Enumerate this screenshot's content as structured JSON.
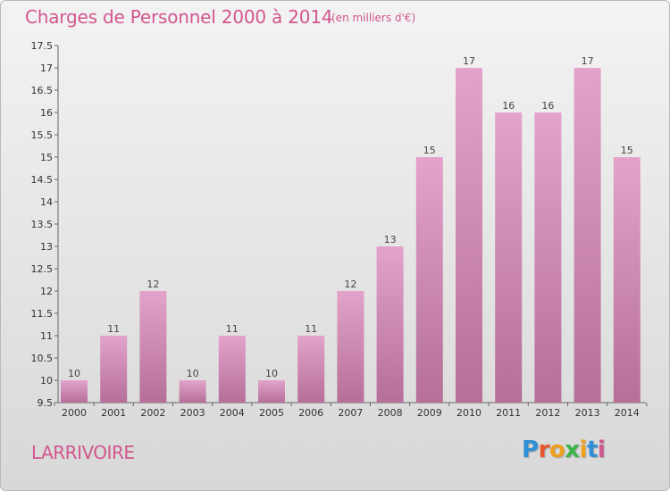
{
  "header": {
    "title": "Charges de Personnel 2000 à 2014",
    "subtitle": "(en milliers d'€)"
  },
  "footer": {
    "commune": "LARRIVOIRE",
    "brand": "Proxiti"
  },
  "colors": {
    "accent": "#d2568f",
    "bar_top": "#e3a3cb",
    "bar_bottom": "#b56f98"
  },
  "chart_data": {
    "type": "bar",
    "title": "Charges de Personnel 2000 à 2014",
    "subtitle": "(en milliers d'€)",
    "categories": [
      "2000",
      "2001",
      "2002",
      "2003",
      "2004",
      "2005",
      "2006",
      "2007",
      "2008",
      "2009",
      "2010",
      "2011",
      "2012",
      "2013",
      "2014"
    ],
    "values": [
      10,
      11,
      12,
      10,
      11,
      10,
      11,
      12,
      13,
      15,
      17,
      16,
      16,
      17,
      15
    ],
    "ylim": [
      9.5,
      17.5
    ],
    "yticks": [
      9.5,
      10,
      10.5,
      11,
      11.5,
      12,
      12.5,
      13,
      13.5,
      14,
      14.5,
      15,
      15.5,
      16,
      16.5,
      17,
      17.5
    ],
    "ytick_labels": [
      "9.5",
      "10",
      "10.5",
      "11",
      "11.5",
      "12",
      "12.5",
      "13",
      "13.5",
      "14",
      "14.5",
      "15",
      "15.5",
      "16",
      "16.5",
      "17",
      "17.5"
    ],
    "grid": false,
    "data_labels": true
  }
}
